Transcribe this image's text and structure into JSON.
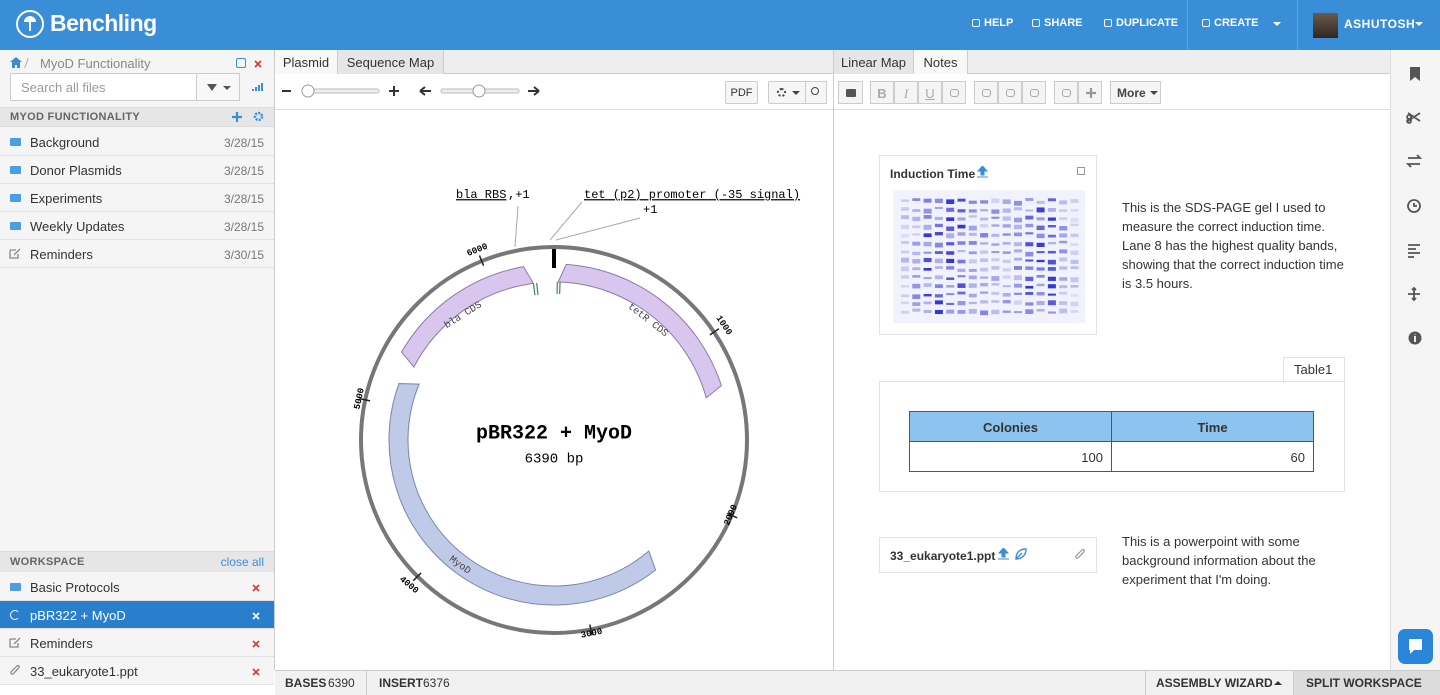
{
  "header": {
    "brand": "Benchling",
    "nav": [
      "HELP",
      "SHARE",
      "DUPLICATE",
      "CREATE"
    ],
    "user": "ASHUTOSH"
  },
  "sidebar": {
    "breadcrumb": "MyoD Functionality",
    "search_placeholder": "Search all files",
    "folder": {
      "title": "MYOD FUNCTIONALITY",
      "items": [
        {
          "name": "Background",
          "date": "3/28/15"
        },
        {
          "name": "Donor Plasmids",
          "date": "3/28/15"
        },
        {
          "name": "Experiments",
          "date": "3/28/15"
        },
        {
          "name": "Weekly Updates",
          "date": "3/28/15"
        },
        {
          "name": "Reminders",
          "date": "3/30/15"
        }
      ]
    },
    "workspace": {
      "title": "WORKSPACE",
      "close_all": "close all",
      "items": [
        "Basic Protocols",
        "pBR322 + MyoD",
        "Reminders",
        "33_eukaryote1.ppt"
      ],
      "active": 1
    }
  },
  "plasmid_panel": {
    "tabs": [
      "Plasmid",
      "Sequence Map"
    ],
    "active_tab": 0,
    "pdf_button": "PDF",
    "map": {
      "name": "pBR322 + MyoD",
      "size": "6390 bp",
      "position_labels": [
        6000,
        1000,
        2000,
        3000,
        4000,
        5000
      ],
      "features": [
        "bla CDS",
        "tetR CDS",
        "MyoD"
      ],
      "annotations": [
        "bla RBS",
        ",+1",
        "tet (p2) promoter (-35 signal)",
        "+1"
      ]
    }
  },
  "notes_panel": {
    "tabs": [
      "Linear Map",
      "Notes"
    ],
    "active_tab": 1,
    "format_buttons": [
      "B",
      "I",
      "U"
    ],
    "more_button": "More",
    "image_card": {
      "title": "Induction Time",
      "caption": "This is the SDS-PAGE gel I used to measure the correct induction time. Lane 8 has the highest quality bands, showing that the correct induction time is 3.5 hours."
    },
    "table": {
      "name": "Table1",
      "headers": [
        "Colonies",
        "Time"
      ],
      "rows": [
        [
          100,
          60
        ]
      ]
    },
    "file_card": {
      "name": "33_eukaryote1.ppt",
      "caption": "This is a powerpoint with some background information about the experiment that I'm doing."
    }
  },
  "status_bar": {
    "bases_label": "BASES",
    "bases": 6390,
    "insert_label": "INSERT",
    "insert": 6376,
    "assembly_wizard": "ASSEMBLY WIZARD",
    "split_workspace": "SPLIT WORKSPACE"
  }
}
